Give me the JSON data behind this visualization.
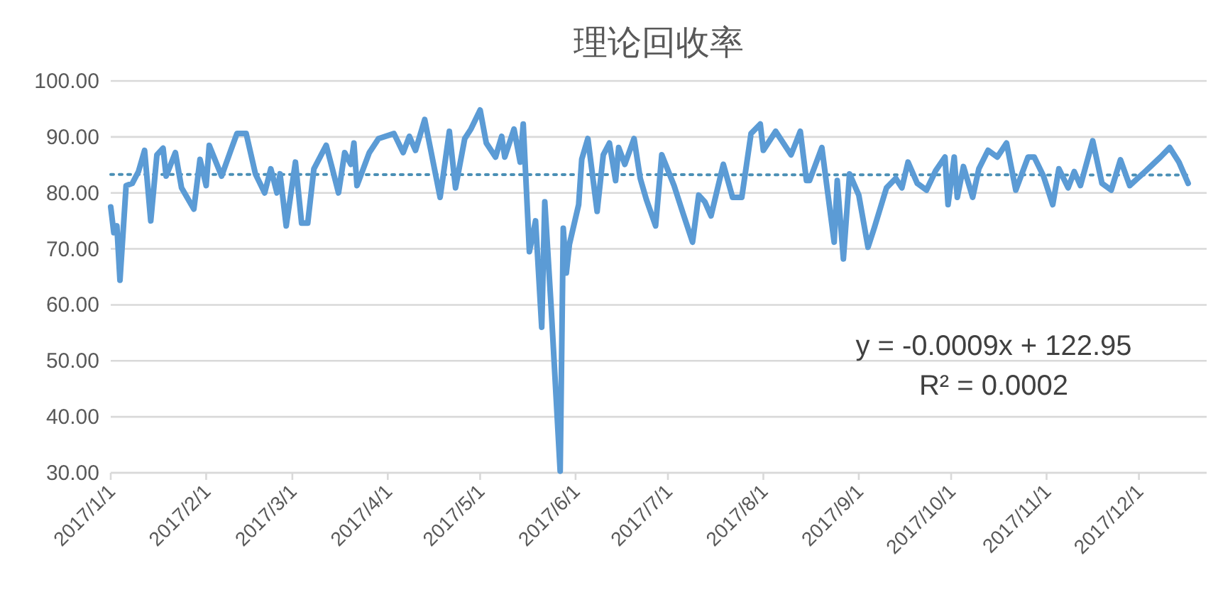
{
  "chart_data": {
    "type": "line",
    "title": "理论回收率",
    "xlim": [
      "2017-01-01",
      "2017-12-23"
    ],
    "xticks": [
      {
        "value": "2017-01-01",
        "label": "2017/1/1"
      },
      {
        "value": "2017-02-01",
        "label": "2017/2/1"
      },
      {
        "value": "2017-03-01",
        "label": "2017/3/1"
      },
      {
        "value": "2017-04-01",
        "label": "2017/4/1"
      },
      {
        "value": "2017-05-01",
        "label": "2017/5/1"
      },
      {
        "value": "2017-06-01",
        "label": "2017/6/1"
      },
      {
        "value": "2017-07-01",
        "label": "2017/7/1"
      },
      {
        "value": "2017-08-01",
        "label": "2017/8/1"
      },
      {
        "value": "2017-09-01",
        "label": "2017/9/1"
      },
      {
        "value": "2017-10-01",
        "label": "2017/10/1"
      },
      {
        "value": "2017-11-01",
        "label": "2017/11/1"
      },
      {
        "value": "2017-12-01",
        "label": "2017/12/1"
      }
    ],
    "ylim": [
      30,
      100
    ],
    "yticks": [
      {
        "value": 30,
        "label": "30.00"
      },
      {
        "value": 40,
        "label": "40.00"
      },
      {
        "value": 50,
        "label": "50.00"
      },
      {
        "value": 60,
        "label": "60.00"
      },
      {
        "value": 70,
        "label": "70.00"
      },
      {
        "value": 80,
        "label": "80.00"
      },
      {
        "value": 90,
        "label": "90.00"
      },
      {
        "value": 100,
        "label": "100.00"
      }
    ],
    "grid": "y",
    "series": [
      {
        "color": "#5b9bd5",
        "x": [
          "2017-01-01",
          "2017-01-02",
          "2017-01-03",
          "2017-01-04",
          "2017-01-06",
          "2017-01-08",
          "2017-01-10",
          "2017-01-12",
          "2017-01-14",
          "2017-01-16",
          "2017-01-18",
          "2017-01-19",
          "2017-01-22",
          "2017-01-24",
          "2017-01-28",
          "2017-01-30",
          "2017-02-01",
          "2017-02-02",
          "2017-02-06",
          "2017-02-09",
          "2017-02-11",
          "2017-02-14",
          "2017-02-17",
          "2017-02-20",
          "2017-02-22",
          "2017-02-24",
          "2017-02-25",
          "2017-02-27",
          "2017-03-02",
          "2017-03-04",
          "2017-03-06",
          "2017-03-08",
          "2017-03-12",
          "2017-03-14",
          "2017-03-16",
          "2017-03-18",
          "2017-03-20",
          "2017-03-21",
          "2017-03-22",
          "2017-03-26",
          "2017-03-29",
          "2017-04-03",
          "2017-04-06",
          "2017-04-08",
          "2017-04-10",
          "2017-04-13",
          "2017-04-18",
          "2017-04-21",
          "2017-04-23",
          "2017-04-26",
          "2017-04-28",
          "2017-05-01",
          "2017-05-03",
          "2017-05-06",
          "2017-05-08",
          "2017-05-09",
          "2017-05-12",
          "2017-05-14",
          "2017-05-15",
          "2017-05-17",
          "2017-05-19",
          "2017-05-21",
          "2017-05-22",
          "2017-05-24",
          "2017-05-27",
          "2017-05-28",
          "2017-05-29",
          "2017-05-30",
          "2017-06-02",
          "2017-06-03",
          "2017-06-05",
          "2017-06-08",
          "2017-06-10",
          "2017-06-12",
          "2017-06-14",
          "2017-06-15",
          "2017-06-17",
          "2017-06-20",
          "2017-06-22",
          "2017-06-24",
          "2017-06-27",
          "2017-06-29",
          "2017-07-03",
          "2017-07-06",
          "2017-07-09",
          "2017-07-11",
          "2017-07-13",
          "2017-07-15",
          "2017-07-19",
          "2017-07-22",
          "2017-07-25",
          "2017-07-28",
          "2017-07-31",
          "2017-08-01",
          "2017-08-05",
          "2017-08-10",
          "2017-08-13",
          "2017-08-15",
          "2017-08-16",
          "2017-08-20",
          "2017-08-24",
          "2017-08-25",
          "2017-08-27",
          "2017-08-29",
          "2017-09-01",
          "2017-09-04",
          "2017-09-06",
          "2017-09-10",
          "2017-09-13",
          "2017-09-15",
          "2017-09-17",
          "2017-09-20",
          "2017-09-23",
          "2017-09-26",
          "2017-09-29",
          "2017-09-30",
          "2017-10-02",
          "2017-10-03",
          "2017-10-05",
          "2017-10-08",
          "2017-10-10",
          "2017-10-13",
          "2017-10-16",
          "2017-10-19",
          "2017-10-22",
          "2017-10-26",
          "2017-10-28",
          "2017-10-31",
          "2017-11-03",
          "2017-11-05",
          "2017-11-08",
          "2017-11-10",
          "2017-11-12",
          "2017-11-16",
          "2017-11-19",
          "2017-11-22",
          "2017-11-25",
          "2017-11-28",
          "2017-12-03",
          "2017-12-08",
          "2017-12-11",
          "2017-12-14",
          "2017-12-17"
        ],
        "values": [
          77.5,
          72.9,
          74.1,
          64.4,
          81.3,
          81.7,
          83.8,
          87.6,
          75.0,
          86.8,
          88.0,
          83.0,
          87.2,
          80.9,
          77.1,
          86.0,
          81.3,
          88.5,
          83.0,
          87.6,
          90.6,
          90.6,
          83.4,
          80.0,
          84.3,
          80.0,
          83.4,
          74.1,
          85.5,
          74.6,
          74.6,
          84.3,
          88.5,
          84.3,
          80.0,
          87.2,
          85.1,
          88.9,
          81.3,
          87.2,
          89.7,
          90.6,
          87.2,
          90.1,
          87.6,
          93.1,
          79.2,
          91.0,
          80.9,
          89.7,
          91.4,
          94.8,
          88.9,
          86.4,
          90.1,
          86.4,
          91.4,
          85.5,
          92.3,
          69.5,
          75.0,
          56.0,
          78.4,
          60.2,
          30.3,
          73.7,
          65.7,
          70.8,
          77.9,
          86.0,
          89.7,
          76.7,
          86.8,
          88.9,
          82.2,
          88.1,
          85.1,
          89.7,
          82.6,
          78.8,
          74.1,
          86.8,
          81.3,
          76.2,
          71.2,
          79.6,
          78.4,
          75.9,
          85.1,
          79.2,
          79.2,
          90.6,
          92.3,
          87.6,
          91.0,
          86.8,
          91.0,
          82.2,
          82.2,
          88.1,
          71.2,
          82.2,
          68.2,
          83.4,
          79.6,
          70.3,
          73.7,
          80.9,
          82.6,
          80.9,
          85.5,
          81.7,
          80.5,
          84.0,
          86.4,
          77.9,
          86.4,
          79.2,
          84.7,
          79.2,
          84.3,
          87.6,
          86.4,
          88.9,
          80.5,
          86.4,
          86.4,
          83.0,
          77.9,
          84.3,
          80.9,
          83.8,
          81.3,
          89.3,
          81.7,
          80.5,
          85.9,
          81.3,
          83.8,
          86.4,
          88.1,
          85.5,
          81.7
        ]
      },
      {
        "type": "line",
        "color": "#4a8fb5",
        "line_style": "dotted",
        "x": [
          "2017-01-01",
          "2017-12-17"
        ],
        "values": [
          83.3,
          83.2
        ]
      }
    ],
    "annotations": [
      "y = -0.0009x + 122.95",
      "R² = 0.0002"
    ]
  }
}
